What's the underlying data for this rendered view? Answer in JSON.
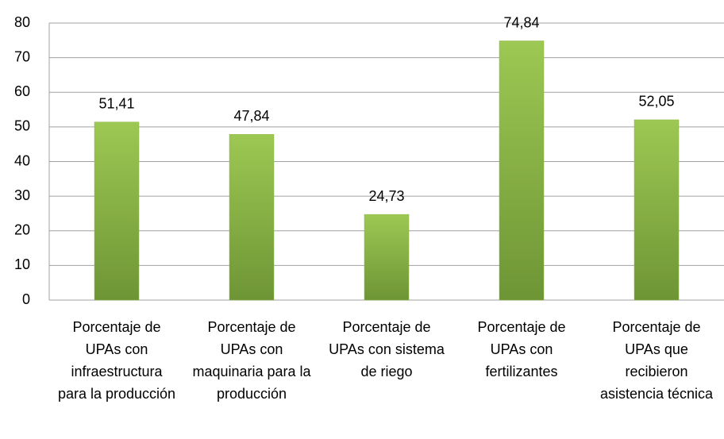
{
  "chart_data": {
    "type": "bar",
    "categories": [
      "Porcentaje de UPAs con infraestructura para la producción",
      "Porcentaje de UPAs con maquinaria para la producción",
      "Porcentaje de UPAs con sistema de riego",
      "Porcentaje de UPAs con fertilizantes",
      "Porcentaje de UPAs que recibieron asistencia técnica"
    ],
    "values": [
      51.41,
      47.84,
      24.73,
      74.84,
      52.05
    ],
    "value_labels": [
      "51,41",
      "47,84",
      "24,73",
      "74,84",
      "52,05"
    ],
    "color": "#8db446",
    "ylim": [
      0,
      80
    ],
    "yticks": [
      0,
      10,
      20,
      30,
      40,
      50,
      60,
      70,
      80
    ],
    "grid": true
  }
}
